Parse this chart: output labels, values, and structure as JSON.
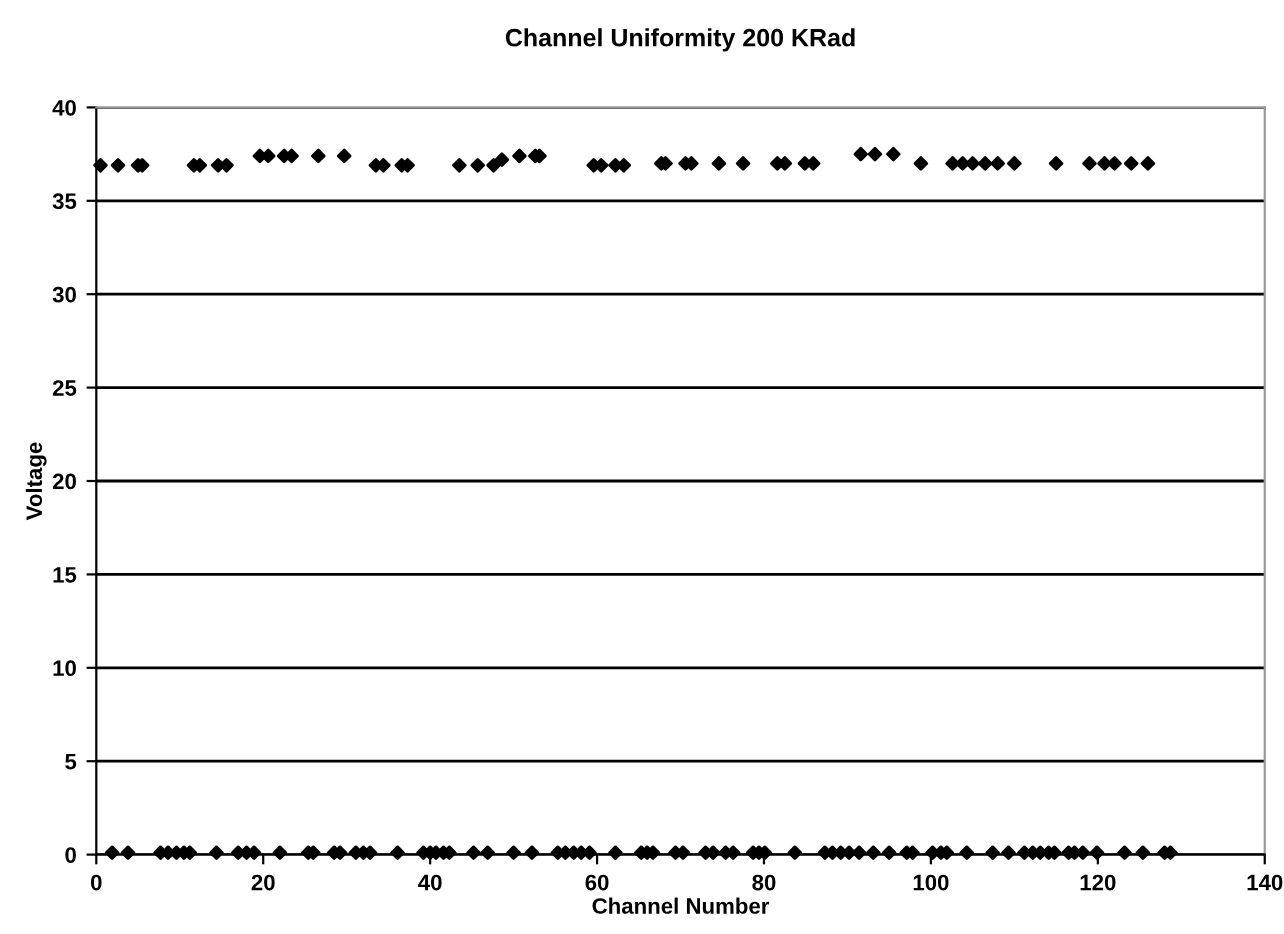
{
  "chart_data": {
    "type": "scatter",
    "title": "Channel Uniformity 200 KRad",
    "xlabel": "Channel Number",
    "ylabel": "Voltage",
    "xlim": [
      0,
      140
    ],
    "xticks": [
      0,
      20,
      40,
      60,
      80,
      100,
      120,
      140
    ],
    "ylim": [
      0,
      40
    ],
    "yticks": [
      0,
      5,
      10,
      15,
      20,
      25,
      30,
      35,
      40
    ],
    "grid": "y",
    "marker": "diamond",
    "legend": false,
    "series": [
      {
        "color": "#000000",
        "x": [
          0.5,
          2.6,
          5,
          5.5,
          11.7,
          12.4,
          14.6,
          15.6,
          19.6,
          20.6,
          22.5,
          23.4,
          26.6,
          29.7,
          33.5,
          34.4,
          36.6,
          37.3,
          43.5,
          45.7,
          47.6,
          48.6,
          50.7,
          52.6,
          53.1,
          59.6,
          60.5,
          62.2,
          63.2,
          67.7,
          68.2,
          70.6,
          71.3,
          74.6,
          77.5,
          81.6,
          82.5,
          84.9,
          85.9,
          91.6,
          93.3,
          95.5,
          98.8,
          102.6,
          103.8,
          105,
          106.5,
          108,
          110,
          115,
          119,
          120.8,
          122,
          124,
          126
        ],
        "values": [
          36.9,
          36.9,
          36.9,
          36.9,
          36.9,
          36.9,
          36.9,
          36.9,
          37.4,
          37.4,
          37.4,
          37.4,
          37.4,
          37.4,
          36.9,
          36.9,
          36.9,
          36.9,
          36.9,
          36.9,
          36.9,
          37.2,
          37.4,
          37.4,
          37.4,
          36.9,
          36.9,
          36.9,
          36.9,
          37.0,
          37.0,
          37.0,
          37.0,
          37.0,
          37.0,
          37.0,
          37.0,
          37.0,
          37.0,
          37.5,
          37.5,
          37.5,
          37.0,
          37.0,
          37.0,
          37.0,
          37.0,
          37.0,
          37.0,
          37.0,
          37.0,
          37.0,
          37.0,
          37.0,
          37.0
        ]
      },
      {
        "color": "#000000",
        "x": [
          1.9,
          3.8,
          7.7,
          8.6,
          9.6,
          10.5,
          11.2,
          14.4,
          17,
          18,
          18.9,
          22,
          25.4,
          26,
          28.5,
          29.2,
          31.1,
          32,
          32.8,
          36.1,
          39.2,
          40,
          40.7,
          41.6,
          42.3,
          45.2,
          46.9,
          50,
          52.2,
          55.3,
          56.2,
          57.2,
          58.1,
          59.1,
          62.2,
          65.3,
          66,
          66.7,
          69.4,
          70.3,
          73,
          73.9,
          75.4,
          76.3,
          78.7,
          79.4,
          80.1,
          83.7,
          87.3,
          88.2,
          89.2,
          90.2,
          91.4,
          93.1,
          95,
          97.1,
          97.8,
          100.2,
          101.2,
          101.9,
          104.3,
          107.4,
          109.3,
          111.2,
          112.2,
          113.1,
          114.1,
          114.8,
          116.5,
          117.2,
          118.2,
          119.9,
          123.2,
          125.4,
          128,
          128.7
        ],
        "values": [
          0.1,
          0.1,
          0.1,
          0.1,
          0.1,
          0.1,
          0.1,
          0.1,
          0.1,
          0.1,
          0.1,
          0.1,
          0.1,
          0.1,
          0.1,
          0.1,
          0.1,
          0.1,
          0.1,
          0.1,
          0.1,
          0.1,
          0.1,
          0.1,
          0.1,
          0.1,
          0.1,
          0.1,
          0.1,
          0.1,
          0.1,
          0.1,
          0.1,
          0.1,
          0.1,
          0.1,
          0.1,
          0.1,
          0.1,
          0.1,
          0.1,
          0.1,
          0.1,
          0.1,
          0.1,
          0.1,
          0.1,
          0.1,
          0.1,
          0.1,
          0.1,
          0.1,
          0.1,
          0.1,
          0.1,
          0.1,
          0.1,
          0.1,
          0.1,
          0.1,
          0.1,
          0.1,
          0.1,
          0.1,
          0.1,
          0.1,
          0.1,
          0.1,
          0.1,
          0.1,
          0.1,
          0.1,
          0.1,
          0.1,
          0.1,
          0.1
        ]
      }
    ]
  }
}
